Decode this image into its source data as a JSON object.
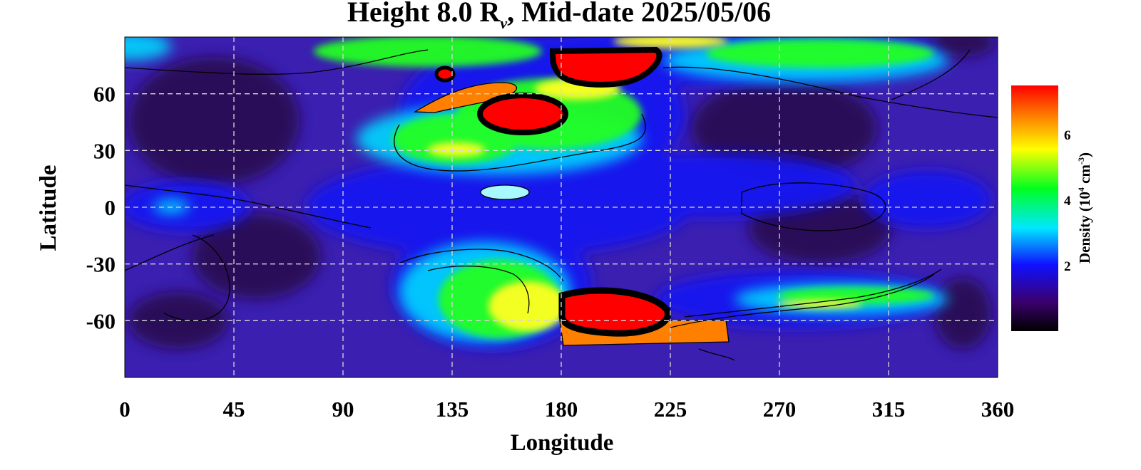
{
  "chart_data": {
    "type": "heatmap",
    "title": {
      "prefix": "Height 8.0 R",
      "subscript": "ν",
      "suffix": ", Mid-date 2025/05/06"
    },
    "xlabel": "Longitude",
    "ylabel": "Latitude",
    "xlim": [
      0,
      360
    ],
    "ylim": [
      -90,
      90
    ],
    "x_ticks": [
      0,
      45,
      90,
      135,
      180,
      225,
      270,
      315,
      360
    ],
    "y_ticks": [
      60,
      30,
      0,
      -30,
      -60
    ],
    "y_tick_labels": [
      "60",
      "30",
      "0",
      "-30",
      "-60"
    ],
    "grid": true,
    "colorbar": {
      "label_prefix": "Density (10",
      "label_exp1": "4",
      "label_mid": " cm",
      "label_exp2": "-3",
      "label_suffix": ")",
      "range": [
        0,
        7.5
      ],
      "ticks": [
        2,
        4,
        6
      ],
      "tick_labels": [
        "2",
        "4",
        "6"
      ],
      "colors": [
        "#000000",
        "#3a006e",
        "#1010ff",
        "#00e8ff",
        "#00ff20",
        "#ffff00",
        "#ff7a00",
        "#ff0000"
      ]
    },
    "features": [
      {
        "name": "red-blob-north-east",
        "lon": 199,
        "lat": 67,
        "value": 7.5
      },
      {
        "name": "red-blob-north-central",
        "lon": 160,
        "lat": 44,
        "value": 7.5
      },
      {
        "name": "red-blob-north-small",
        "lon": 131,
        "lat": 74,
        "value": 7.5
      },
      {
        "name": "red-blob-south",
        "lon": 202,
        "lat": -52,
        "value": 7.5
      },
      {
        "name": "orange-band-south",
        "lon": 225,
        "lat": -65,
        "value": 6.8
      },
      {
        "name": "orange-arc-north",
        "lon": 140,
        "lat": 56,
        "value": 6.6
      },
      {
        "name": "green-region-south",
        "lon": 155,
        "lat": -50,
        "value": 4.8
      },
      {
        "name": "green-region-north",
        "lon": 150,
        "lat": 42,
        "value": 4.5
      },
      {
        "name": "green-streak-north-east",
        "lon": 290,
        "lat": 80,
        "value": 4.3
      },
      {
        "name": "yellow-streak-south-east",
        "lon": 290,
        "lat": -50,
        "value": 5.0
      },
      {
        "name": "cyan-spot-equator",
        "lon": 161,
        "lat": 7,
        "value": 3.2
      }
    ]
  }
}
